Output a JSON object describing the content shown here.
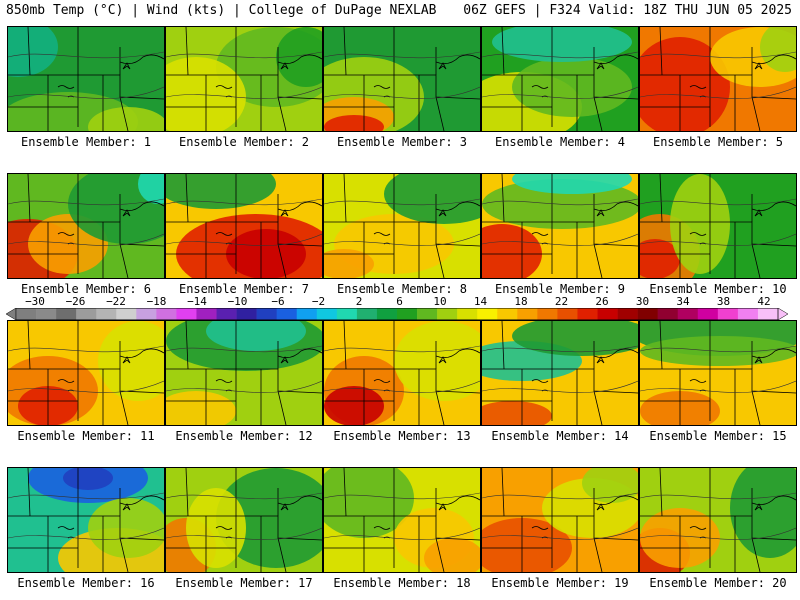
{
  "header": {
    "left": "850mb Temp (°C) | Wind (kts) | College of DuPage NEXLAB",
    "right": "06Z GEFS | F324 Valid: 18Z THU JUN 05 2025"
  },
  "colorbar": {
    "tick_labels": [
      "−30",
      "−26",
      "−22",
      "−18",
      "−14",
      "−10",
      "−6",
      "−2",
      "2",
      "6",
      "10",
      "14",
      "18",
      "22",
      "26",
      "30",
      "34",
      "38",
      "42"
    ],
    "colors": [
      "#7f7f7f",
      "#8a8a8a",
      "#6e6e6e",
      "#9c9c9c",
      "#b4b4b4",
      "#cfcfcf",
      "#c8a0e0",
      "#d070e0",
      "#e040f0",
      "#a020c0",
      "#5a20b0",
      "#3020a0",
      "#2040c0",
      "#1a60e0",
      "#10a0f0",
      "#10c8e0",
      "#20d8b0",
      "#20b070",
      "#10a040",
      "#20a020",
      "#60b820",
      "#a0d010",
      "#d8e000",
      "#f8f000",
      "#f8c800",
      "#f8a000",
      "#f07800",
      "#e85000",
      "#e02000",
      "#c80000",
      "#a00000",
      "#800000",
      "#900030",
      "#b00060",
      "#d000a0",
      "#f040d0",
      "#f080f0",
      "#f8c0f8"
    ]
  },
  "panels": [
    {
      "label": "Ensemble Member: 1",
      "base": "#1f9a33",
      "blobs": [
        [
          "#60b820",
          60,
          95,
          70,
          30
        ],
        [
          "#a0d010",
          120,
          100,
          40,
          20
        ],
        [
          "#12b080",
          10,
          20,
          40,
          30
        ]
      ]
    },
    {
      "label": "Ensemble Member: 2",
      "base": "#a0d010",
      "blobs": [
        [
          "#60b820",
          110,
          40,
          60,
          40
        ],
        [
          "#d8e000",
          30,
          70,
          50,
          40
        ],
        [
          "#20a020",
          140,
          30,
          30,
          30
        ]
      ]
    },
    {
      "label": "Ensemble Member: 3",
      "base": "#1f9a33",
      "blobs": [
        [
          "#a0d010",
          40,
          70,
          60,
          40
        ],
        [
          "#f8a000",
          30,
          90,
          40,
          20
        ],
        [
          "#e02000",
          30,
          100,
          30,
          12
        ]
      ]
    },
    {
      "label": "Ensemble Member: 4",
      "base": "#20a020",
      "blobs": [
        [
          "#d8e000",
          40,
          80,
          60,
          35
        ],
        [
          "#60b820",
          90,
          60,
          60,
          30
        ],
        [
          "#20c090",
          80,
          15,
          70,
          20
        ]
      ]
    },
    {
      "label": "Ensemble Member: 5",
      "base": "#f07800",
      "blobs": [
        [
          "#e02000",
          40,
          60,
          50,
          50
        ],
        [
          "#f8c800",
          120,
          30,
          50,
          30
        ],
        [
          "#a0d010",
          145,
          20,
          25,
          25
        ]
      ]
    },
    {
      "label": "Ensemble Member: 6",
      "base": "#60b820",
      "blobs": [
        [
          "#e02000",
          20,
          80,
          50,
          35
        ],
        [
          "#f8a000",
          60,
          70,
          40,
          30
        ],
        [
          "#1f9a33",
          120,
          30,
          60,
          40
        ],
        [
          "#20d8b0",
          150,
          10,
          20,
          20
        ]
      ]
    },
    {
      "label": "Ensemble Member: 7",
      "base": "#f8c800",
      "blobs": [
        [
          "#e02000",
          90,
          80,
          80,
          40
        ],
        [
          "#c80000",
          100,
          80,
          40,
          25
        ],
        [
          "#1f9a33",
          50,
          10,
          60,
          25
        ]
      ]
    },
    {
      "label": "Ensemble Member: 8",
      "base": "#d8e000",
      "blobs": [
        [
          "#f8c800",
          70,
          70,
          60,
          30
        ],
        [
          "#1f9a33",
          120,
          20,
          60,
          30
        ],
        [
          "#f8a000",
          20,
          90,
          30,
          15
        ]
      ]
    },
    {
      "label": "Ensemble Member: 9",
      "base": "#f8c800",
      "blobs": [
        [
          "#e02000",
          20,
          80,
          40,
          30
        ],
        [
          "#60b820",
          80,
          30,
          80,
          25
        ],
        [
          "#20d8b0",
          90,
          5,
          60,
          15
        ]
      ]
    },
    {
      "label": "Ensemble Member: 10",
      "base": "#20a020",
      "blobs": [
        [
          "#f07800",
          20,
          80,
          40,
          40
        ],
        [
          "#e02000",
          15,
          85,
          25,
          20
        ],
        [
          "#a0d010",
          60,
          50,
          30,
          50
        ]
      ]
    },
    {
      "label": "Ensemble Member: 11",
      "base": "#f8c800",
      "blobs": [
        [
          "#f07800",
          40,
          70,
          50,
          35
        ],
        [
          "#e02000",
          40,
          85,
          30,
          20
        ],
        [
          "#d8e000",
          130,
          40,
          40,
          40
        ]
      ]
    },
    {
      "label": "Ensemble Member: 12",
      "base": "#a0d010",
      "blobs": [
        [
          "#1f9a33",
          80,
          20,
          80,
          30
        ],
        [
          "#20c090",
          90,
          10,
          50,
          20
        ],
        [
          "#f8c800",
          30,
          90,
          40,
          20
        ]
      ]
    },
    {
      "label": "Ensemble Member: 13",
      "base": "#f8c800",
      "blobs": [
        [
          "#f07800",
          40,
          70,
          40,
          35
        ],
        [
          "#c80000",
          30,
          85,
          30,
          20
        ],
        [
          "#d8e000",
          120,
          40,
          50,
          40
        ]
      ]
    },
    {
      "label": "Ensemble Member: 14",
      "base": "#f8c800",
      "blobs": [
        [
          "#20c090",
          40,
          40,
          60,
          20
        ],
        [
          "#1f9a33",
          100,
          15,
          70,
          20
        ],
        [
          "#e85000",
          30,
          95,
          40,
          15
        ]
      ]
    },
    {
      "label": "Ensemble Member: 15",
      "base": "#f8c800",
      "blobs": [
        [
          "#1f9a33",
          80,
          10,
          90,
          25
        ],
        [
          "#60b820",
          80,
          30,
          80,
          15
        ],
        [
          "#f07800",
          40,
          90,
          40,
          20
        ]
      ]
    },
    {
      "label": "Ensemble Member: 16",
      "base": "#20c090",
      "blobs": [
        [
          "#1a60e0",
          80,
          10,
          60,
          25
        ],
        [
          "#2040c0",
          80,
          10,
          25,
          12
        ],
        [
          "#f8c800",
          110,
          90,
          60,
          30
        ],
        [
          "#a0d010",
          120,
          60,
          40,
          30
        ]
      ]
    },
    {
      "label": "Ensemble Member: 17",
      "base": "#a0d010",
      "blobs": [
        [
          "#1f9a33",
          110,
          50,
          60,
          50
        ],
        [
          "#f07800",
          20,
          80,
          30,
          30
        ],
        [
          "#d8e000",
          50,
          60,
          30,
          40
        ]
      ]
    },
    {
      "label": "Ensemble Member: 18",
      "base": "#d8e000",
      "blobs": [
        [
          "#60b820",
          40,
          30,
          50,
          40
        ],
        [
          "#f8c800",
          110,
          70,
          40,
          30
        ],
        [
          "#f8a000",
          130,
          90,
          30,
          20
        ]
      ]
    },
    {
      "label": "Ensemble Member: 19",
      "base": "#f8a000",
      "blobs": [
        [
          "#e85000",
          40,
          80,
          50,
          30
        ],
        [
          "#d8e000",
          110,
          40,
          50,
          30
        ],
        [
          "#a0d010",
          130,
          15,
          30,
          20
        ]
      ]
    },
    {
      "label": "Ensemble Member: 20",
      "base": "#a0d010",
      "blobs": [
        [
          "#e02000",
          20,
          85,
          30,
          25
        ],
        [
          "#f8a000",
          40,
          70,
          40,
          30
        ],
        [
          "#1f9a33",
          130,
          40,
          40,
          50
        ]
      ]
    }
  ]
}
